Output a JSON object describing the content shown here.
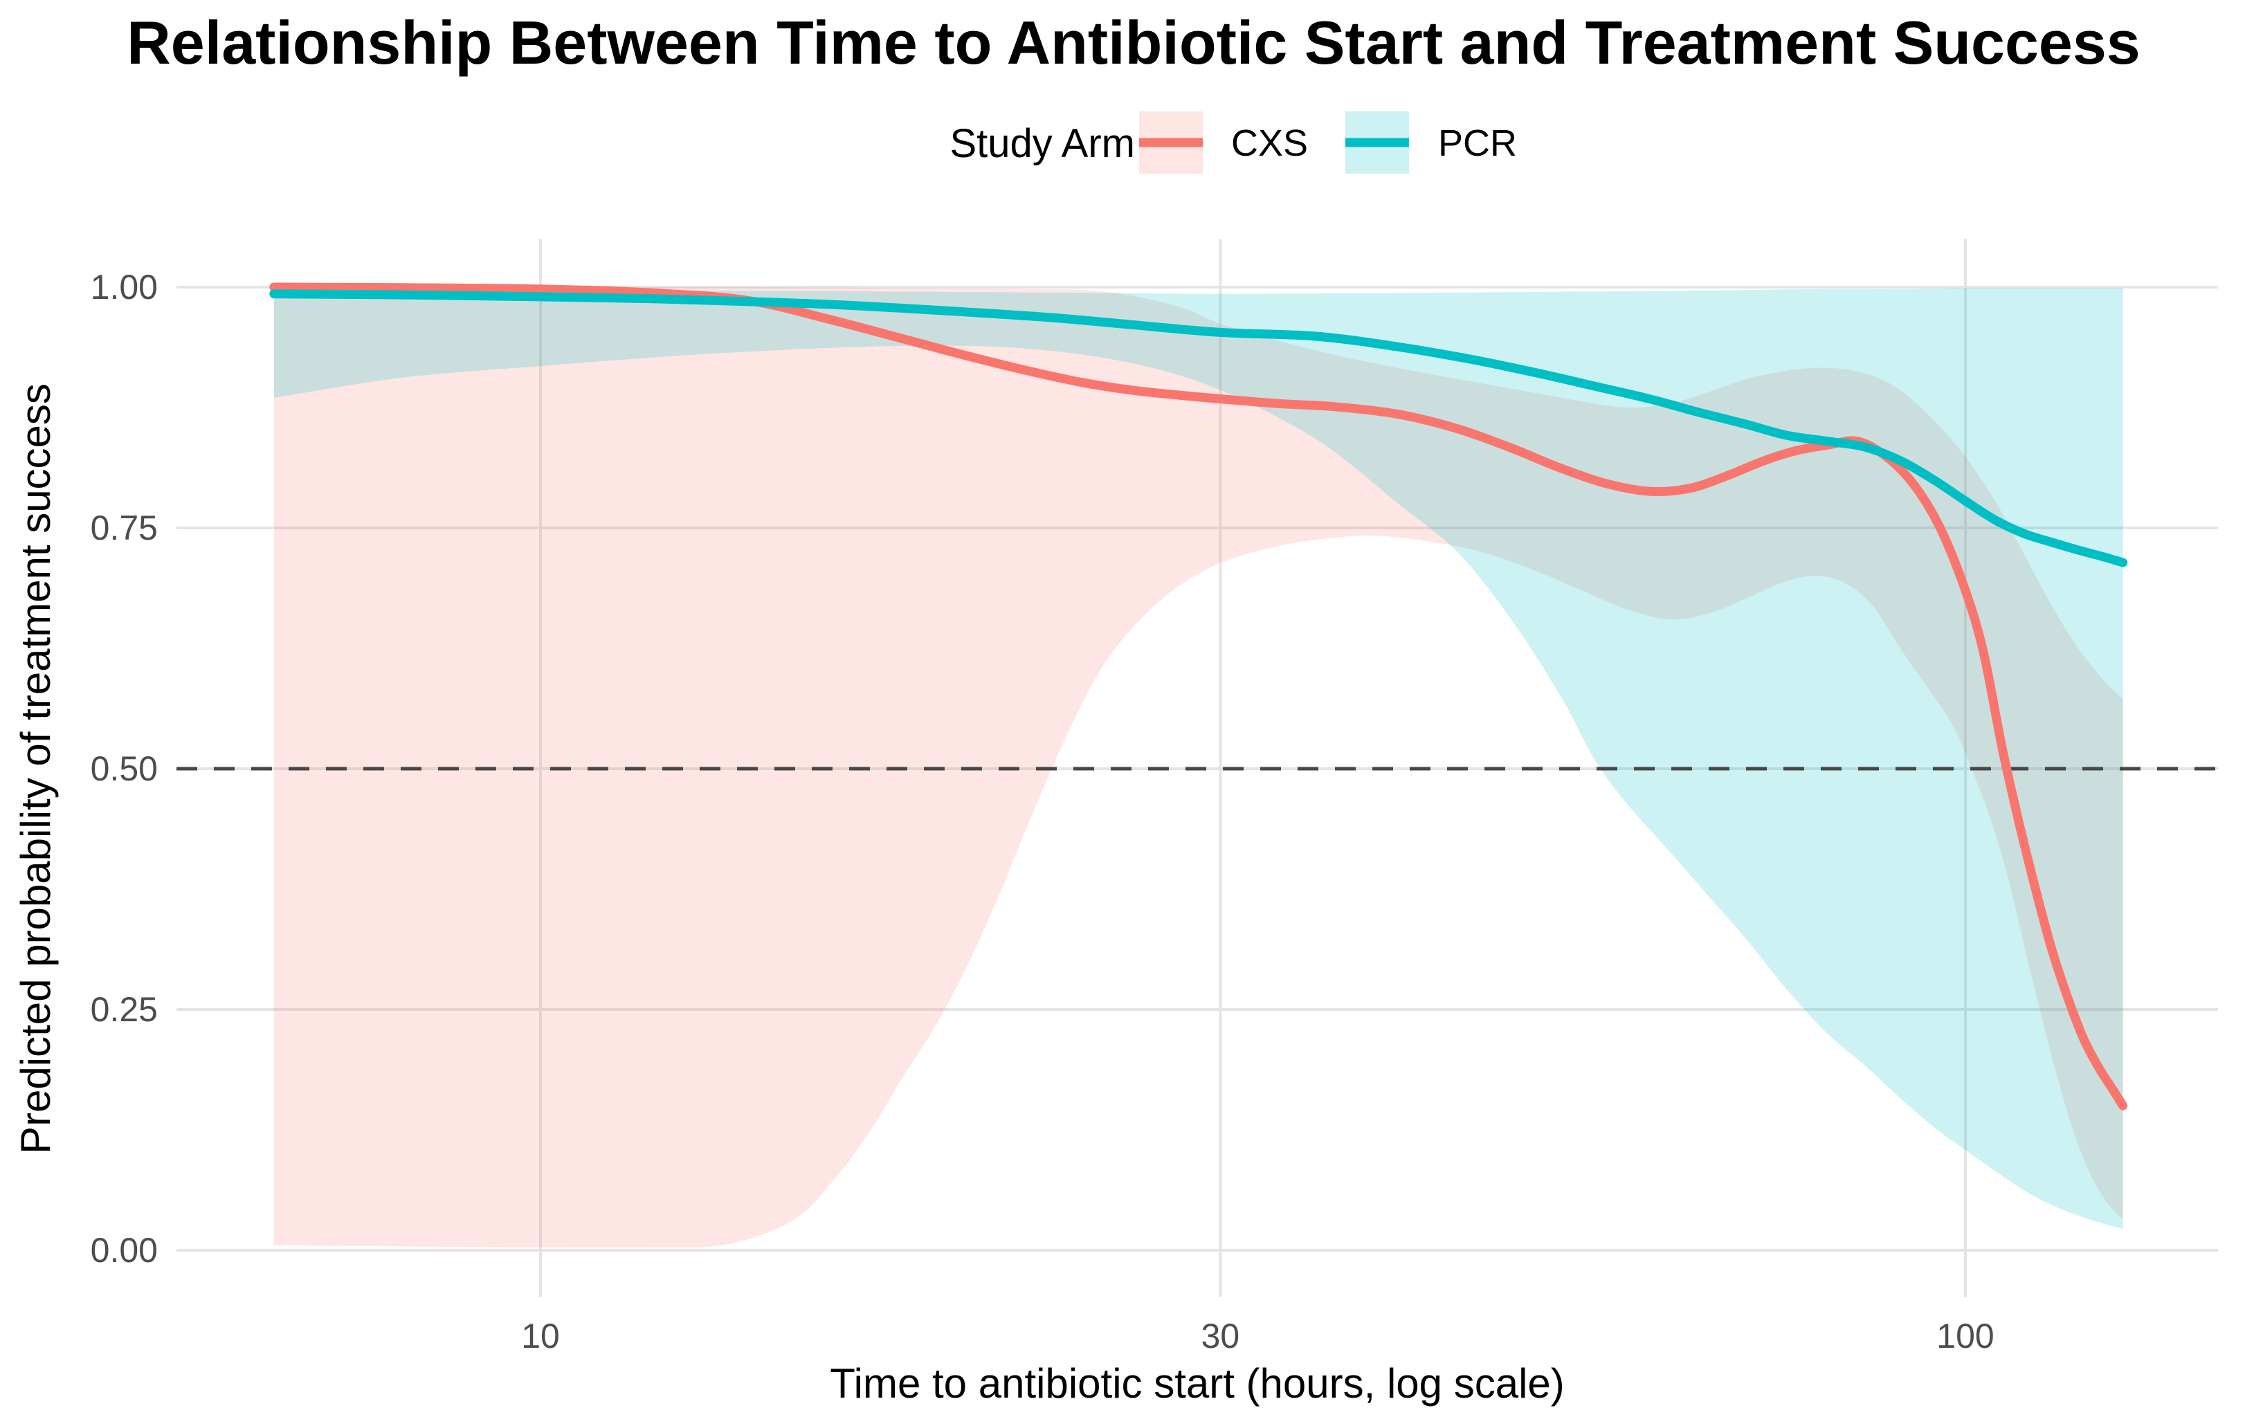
{
  "title": "Relationship Between Time to Antibiotic Start and Treatment Success",
  "legend": {
    "title": "Study Arm",
    "entries": [
      {
        "label": "CXS",
        "color": "#F8766D",
        "fill": "rgba(248,118,109,0.18)"
      },
      {
        "label": "PCR",
        "color": "#00BFC4",
        "fill": "rgba(0,191,196,0.20)"
      }
    ]
  },
  "chart_data": {
    "type": "line",
    "title": "Relationship Between Time to Antibiotic Start and Treatment Success",
    "xlabel": "Time to antibiotic start (hours, log scale)",
    "ylabel": "Predicted probability of treatment success",
    "x_scale": "log10",
    "x_domain": [
      6.5,
      129
    ],
    "x_ticks": [
      {
        "value": 10,
        "label": "10"
      },
      {
        "value": 30,
        "label": "30"
      },
      {
        "value": 100,
        "label": "100"
      }
    ],
    "y_domain": [
      0,
      1
    ],
    "y_ticks": [
      {
        "value": 0.0,
        "label": "0.00"
      },
      {
        "value": 0.25,
        "label": "0.25"
      },
      {
        "value": 0.5,
        "label": "0.50"
      },
      {
        "value": 0.75,
        "label": "0.75"
      },
      {
        "value": 1.0,
        "label": "1.00"
      }
    ],
    "grid": true,
    "grid_color": "#E4E4E4",
    "legend_position": "top",
    "reference_line": {
      "y": 0.5,
      "style": "dashed",
      "color": "#474747"
    },
    "series": [
      {
        "name": "CXS",
        "color": "#F8766D",
        "fill": "rgba(248,118,109,0.18)",
        "points": [
          [
            6.5,
            1.0
          ],
          [
            8,
            0.9995
          ],
          [
            10,
            0.998
          ],
          [
            12,
            0.994
          ],
          [
            14,
            0.986
          ],
          [
            16,
            0.966
          ],
          [
            18,
            0.946
          ],
          [
            20,
            0.928
          ],
          [
            22,
            0.913
          ],
          [
            24,
            0.901
          ],
          [
            26,
            0.893
          ],
          [
            28,
            0.888
          ],
          [
            30,
            0.884
          ],
          [
            33,
            0.879
          ],
          [
            36,
            0.876
          ],
          [
            40,
            0.868
          ],
          [
            44,
            0.853
          ],
          [
            48,
            0.833
          ],
          [
            52,
            0.812
          ],
          [
            56,
            0.796
          ],
          [
            60,
            0.788
          ],
          [
            64,
            0.791
          ],
          [
            68,
            0.804
          ],
          [
            72,
            0.819
          ],
          [
            76,
            0.83
          ],
          [
            80,
            0.836
          ],
          [
            84,
            0.84
          ],
          [
            88,
            0.824
          ],
          [
            92,
            0.795
          ],
          [
            96,
            0.75
          ],
          [
            100,
            0.685
          ],
          [
            103,
            0.62
          ],
          [
            106,
            0.525
          ],
          [
            109,
            0.445
          ],
          [
            112,
            0.375
          ],
          [
            115,
            0.312
          ],
          [
            118,
            0.262
          ],
          [
            121,
            0.22
          ],
          [
            124,
            0.19
          ],
          [
            127,
            0.166
          ],
          [
            129,
            0.15
          ]
        ],
        "ribbon_upper": [
          [
            6.5,
            1.0
          ],
          [
            10,
            1.0
          ],
          [
            14,
            1.0
          ],
          [
            18,
            0.999
          ],
          [
            22,
            0.998
          ],
          [
            25,
            0.995
          ],
          [
            28,
            0.98
          ],
          [
            30,
            0.962
          ],
          [
            33,
            0.944
          ],
          [
            36,
            0.93
          ],
          [
            40,
            0.916
          ],
          [
            45,
            0.902
          ],
          [
            50,
            0.89
          ],
          [
            54,
            0.881
          ],
          [
            58,
            0.875
          ],
          [
            62,
            0.879
          ],
          [
            66,
            0.891
          ],
          [
            70,
            0.904
          ],
          [
            74,
            0.912
          ],
          [
            78,
            0.916
          ],
          [
            82,
            0.915
          ],
          [
            86,
            0.908
          ],
          [
            90,
            0.893
          ],
          [
            95,
            0.862
          ],
          [
            100,
            0.824
          ],
          [
            105,
            0.777
          ],
          [
            110,
            0.722
          ],
          [
            115,
            0.669
          ],
          [
            120,
            0.625
          ],
          [
            125,
            0.592
          ],
          [
            129,
            0.572
          ]
        ],
        "ribbon_lower": [
          [
            6.5,
            0.005
          ],
          [
            8,
            0.004
          ],
          [
            10,
            0.003
          ],
          [
            12,
            0.003
          ],
          [
            13.5,
            0.006
          ],
          [
            15,
            0.03
          ],
          [
            16,
            0.07
          ],
          [
            17,
            0.122
          ],
          [
            18,
            0.182
          ],
          [
            19,
            0.237
          ],
          [
            20,
            0.3
          ],
          [
            21,
            0.37
          ],
          [
            22,
            0.443
          ],
          [
            23.5,
            0.54
          ],
          [
            25,
            0.614
          ],
          [
            27,
            0.67
          ],
          [
            29,
            0.703
          ],
          [
            31,
            0.721
          ],
          [
            34,
            0.735
          ],
          [
            38,
            0.742
          ],
          [
            42,
            0.736
          ],
          [
            46,
            0.724
          ],
          [
            50,
            0.705
          ],
          [
            54,
            0.684
          ],
          [
            58,
            0.665
          ],
          [
            62,
            0.655
          ],
          [
            66,
            0.661
          ],
          [
            70,
            0.676
          ],
          [
            74,
            0.692
          ],
          [
            78,
            0.7
          ],
          [
            82,
            0.694
          ],
          [
            86,
            0.67
          ],
          [
            90,
            0.625
          ],
          [
            94,
            0.585
          ],
          [
            98,
            0.545
          ],
          [
            101,
            0.5
          ],
          [
            104,
            0.45
          ],
          [
            107,
            0.39
          ],
          [
            110,
            0.315
          ],
          [
            113,
            0.245
          ],
          [
            116,
            0.18
          ],
          [
            119,
            0.125
          ],
          [
            122,
            0.083
          ],
          [
            125,
            0.055
          ],
          [
            127,
            0.042
          ],
          [
            129,
            0.032
          ]
        ]
      },
      {
        "name": "PCR",
        "color": "#00BFC4",
        "fill": "rgba(0,191,196,0.20)",
        "points": [
          [
            6.5,
            0.993
          ],
          [
            8,
            0.992
          ],
          [
            10,
            0.99
          ],
          [
            12,
            0.988
          ],
          [
            14,
            0.985
          ],
          [
            16,
            0.982
          ],
          [
            18,
            0.978
          ],
          [
            20,
            0.974
          ],
          [
            23,
            0.968
          ],
          [
            26,
            0.961
          ],
          [
            30,
            0.953
          ],
          [
            35,
            0.949
          ],
          [
            40,
            0.938
          ],
          [
            45,
            0.925
          ],
          [
            50,
            0.911
          ],
          [
            55,
            0.897
          ],
          [
            60,
            0.884
          ],
          [
            65,
            0.87
          ],
          [
            70,
            0.858
          ],
          [
            75,
            0.846
          ],
          [
            80,
            0.84
          ],
          [
            85,
            0.834
          ],
          [
            90,
            0.82
          ],
          [
            95,
            0.8
          ],
          [
            100,
            0.778
          ],
          [
            105,
            0.758
          ],
          [
            110,
            0.744
          ],
          [
            115,
            0.735
          ],
          [
            120,
            0.727
          ],
          [
            125,
            0.72
          ],
          [
            129,
            0.714
          ]
        ],
        "ribbon_upper": [
          [
            6.5,
            0.998
          ],
          [
            10,
            0.997
          ],
          [
            15,
            0.996
          ],
          [
            20,
            0.995
          ],
          [
            25,
            0.994
          ],
          [
            30,
            0.993
          ],
          [
            40,
            0.994
          ],
          [
            50,
            0.995
          ],
          [
            60,
            0.996
          ],
          [
            70,
            0.997
          ],
          [
            80,
            0.998
          ],
          [
            90,
            0.998
          ],
          [
            100,
            0.999
          ],
          [
            110,
            0.999
          ],
          [
            120,
            0.999
          ],
          [
            129,
            0.999
          ]
        ],
        "ribbon_lower": [
          [
            6.5,
            0.885
          ],
          [
            8,
            0.906
          ],
          [
            10,
            0.918
          ],
          [
            12,
            0.927
          ],
          [
            14,
            0.933
          ],
          [
            16,
            0.937
          ],
          [
            18,
            0.939
          ],
          [
            20,
            0.939
          ],
          [
            22,
            0.936
          ],
          [
            24,
            0.93
          ],
          [
            26,
            0.921
          ],
          [
            28,
            0.909
          ],
          [
            30,
            0.893
          ],
          [
            33,
            0.864
          ],
          [
            36,
            0.83
          ],
          [
            40,
            0.775
          ],
          [
            44,
            0.725
          ],
          [
            48,
            0.655
          ],
          [
            52,
            0.575
          ],
          [
            55,
            0.508
          ],
          [
            58,
            0.462
          ],
          [
            62,
            0.414
          ],
          [
            66,
            0.368
          ],
          [
            70,
            0.325
          ],
          [
            75,
            0.27
          ],
          [
            80,
            0.225
          ],
          [
            85,
            0.192
          ],
          [
            90,
            0.158
          ],
          [
            95,
            0.128
          ],
          [
            100,
            0.104
          ],
          [
            105,
            0.082
          ],
          [
            110,
            0.062
          ],
          [
            115,
            0.047
          ],
          [
            120,
            0.036
          ],
          [
            124,
            0.029
          ],
          [
            129,
            0.022
          ]
        ]
      }
    ]
  }
}
